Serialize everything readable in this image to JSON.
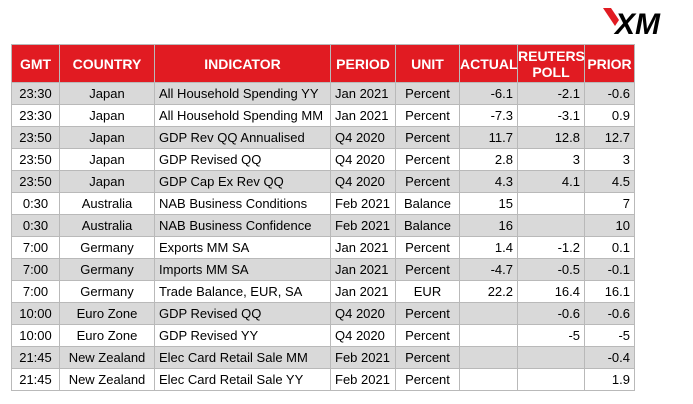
{
  "brand": {
    "logo_text": "XM",
    "logo_color": "#000000"
  },
  "colors": {
    "header_bg": "#e11b22",
    "header_text": "#ffffff",
    "stripe": "#d9d9d9",
    "border": "#b9b9b9"
  },
  "table": {
    "headers": {
      "gmt": "GMT",
      "country": "COUNTRY",
      "indicator": "INDICATOR",
      "period": "PERIOD",
      "unit": "UNIT",
      "actual": "ACTUAL",
      "reuters_poll": "REUTERS POLL",
      "prior": "PRIOR"
    },
    "rows": [
      {
        "gmt": "23:30",
        "country": "Japan",
        "indicator": "All Household Spending YY",
        "period": "Jan 2021",
        "unit": "Percent",
        "actual": "-6.1",
        "reuters_poll": "-2.1",
        "prior": "-0.6"
      },
      {
        "gmt": "23:30",
        "country": "Japan",
        "indicator": "All Household Spending MM",
        "period": "Jan 2021",
        "unit": "Percent",
        "actual": "-7.3",
        "reuters_poll": "-3.1",
        "prior": "0.9"
      },
      {
        "gmt": "23:50",
        "country": "Japan",
        "indicator": "GDP Rev QQ Annualised",
        "period": "Q4 2020",
        "unit": "Percent",
        "actual": "11.7",
        "reuters_poll": "12.8",
        "prior": "12.7"
      },
      {
        "gmt": "23:50",
        "country": "Japan",
        "indicator": "GDP Revised QQ",
        "period": "Q4 2020",
        "unit": "Percent",
        "actual": "2.8",
        "reuters_poll": "3",
        "prior": "3"
      },
      {
        "gmt": "23:50",
        "country": "Japan",
        "indicator": "GDP Cap Ex Rev QQ",
        "period": "Q4 2020",
        "unit": "Percent",
        "actual": "4.3",
        "reuters_poll": "4.1",
        "prior": "4.5"
      },
      {
        "gmt": "0:30",
        "country": "Australia",
        "indicator": "NAB Business Conditions",
        "period": "Feb 2021",
        "unit": "Balance",
        "actual": "15",
        "reuters_poll": "",
        "prior": "7"
      },
      {
        "gmt": "0:30",
        "country": "Australia",
        "indicator": "NAB Business Confidence",
        "period": "Feb 2021",
        "unit": "Balance",
        "actual": "16",
        "reuters_poll": "",
        "prior": "10"
      },
      {
        "gmt": "7:00",
        "country": "Germany",
        "indicator": "Exports MM SA",
        "period": "Jan 2021",
        "unit": "Percent",
        "actual": "1.4",
        "reuters_poll": "-1.2",
        "prior": "0.1"
      },
      {
        "gmt": "7:00",
        "country": "Germany",
        "indicator": "Imports MM SA",
        "period": "Jan 2021",
        "unit": "Percent",
        "actual": "-4.7",
        "reuters_poll": "-0.5",
        "prior": "-0.1"
      },
      {
        "gmt": "7:00",
        "country": "Germany",
        "indicator": "Trade Balance, EUR, SA",
        "period": "Jan 2021",
        "unit": "EUR",
        "actual": "22.2",
        "reuters_poll": "16.4",
        "prior": "16.1"
      },
      {
        "gmt": "10:00",
        "country": "Euro Zone",
        "indicator": "GDP Revised QQ",
        "period": "Q4 2020",
        "unit": "Percent",
        "actual": "",
        "reuters_poll": "-0.6",
        "prior": "-0.6"
      },
      {
        "gmt": "10:00",
        "country": "Euro Zone",
        "indicator": "GDP Revised YY",
        "period": "Q4 2020",
        "unit": "Percent",
        "actual": "",
        "reuters_poll": "-5",
        "prior": "-5"
      },
      {
        "gmt": "21:45",
        "country": "New Zealand",
        "indicator": "Elec Card Retail Sale MM",
        "period": "Feb 2021",
        "unit": "Percent",
        "actual": "",
        "reuters_poll": "",
        "prior": "-0.4"
      },
      {
        "gmt": "21:45",
        "country": "New Zealand",
        "indicator": "Elec Card Retail Sale YY",
        "period": "Feb 2021",
        "unit": "Percent",
        "actual": "",
        "reuters_poll": "",
        "prior": "1.9"
      }
    ]
  }
}
